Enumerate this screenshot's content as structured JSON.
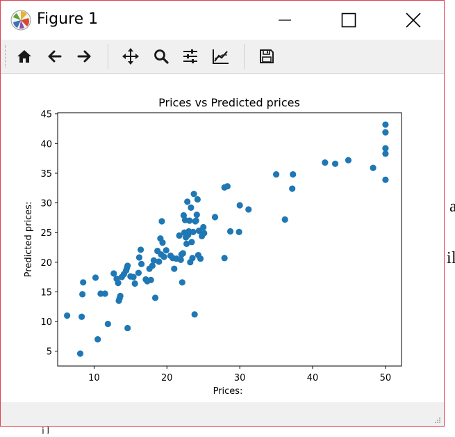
{
  "window": {
    "title": "Figure 1"
  },
  "background_fragments": [
    "a",
    "i",
    "l",
    "i l",
    "·"
  ],
  "toolbar": {
    "buttons": [
      {
        "name": "home-button",
        "icon": "home-icon"
      },
      {
        "name": "back-button",
        "icon": "arrow-left-icon"
      },
      {
        "name": "forward-button",
        "icon": "arrow-right-icon"
      },
      {
        "name": "pan-button",
        "icon": "move-icon"
      },
      {
        "name": "zoom-button",
        "icon": "magnifier-icon"
      },
      {
        "name": "configure-subplots-button",
        "icon": "sliders-icon"
      },
      {
        "name": "edit-axis-button",
        "icon": "line-chart-icon"
      },
      {
        "name": "save-button",
        "icon": "floppy-disk-icon"
      }
    ]
  },
  "colors": {
    "marker": "#1f77b4",
    "window_border": "#e04050",
    "toolbar_bg": "#f0f0f0"
  },
  "chart_data": {
    "type": "scatter",
    "title": "Prices vs Predicted prices",
    "xlabel": "Prices:",
    "ylabel": "Predicted prices:",
    "xlim": [
      5,
      52.2
    ],
    "ylim": [
      2.5,
      45.2
    ],
    "xticks": [
      10,
      20,
      30,
      40,
      50
    ],
    "yticks": [
      5,
      10,
      15,
      20,
      25,
      30,
      35,
      40,
      45
    ],
    "grid": false,
    "points": [
      [
        6.3,
        11.0
      ],
      [
        8.1,
        4.6
      ],
      [
        8.3,
        10.8
      ],
      [
        8.4,
        14.6
      ],
      [
        8.5,
        16.6
      ],
      [
        10.2,
        17.4
      ],
      [
        10.5,
        7.0
      ],
      [
        10.9,
        14.7
      ],
      [
        11.5,
        14.7
      ],
      [
        11.9,
        9.6
      ],
      [
        12.7,
        18.1
      ],
      [
        13.1,
        17.2
      ],
      [
        13.3,
        16.5
      ],
      [
        13.4,
        13.5
      ],
      [
        13.5,
        13.9
      ],
      [
        13.6,
        14.3
      ],
      [
        13.8,
        17.5
      ],
      [
        14.1,
        18.0
      ],
      [
        14.4,
        18.6
      ],
      [
        14.5,
        19.0
      ],
      [
        14.6,
        19.4
      ],
      [
        14.6,
        8.9
      ],
      [
        15.0,
        17.6
      ],
      [
        15.4,
        17.5
      ],
      [
        15.6,
        16.4
      ],
      [
        16.1,
        18.2
      ],
      [
        16.2,
        20.8
      ],
      [
        16.4,
        22.1
      ],
      [
        16.5,
        19.7
      ],
      [
        17.1,
        17.1
      ],
      [
        17.3,
        16.8
      ],
      [
        17.6,
        18.9
      ],
      [
        17.8,
        17.0
      ],
      [
        18.0,
        19.4
      ],
      [
        18.2,
        20.3
      ],
      [
        18.4,
        14.0
      ],
      [
        18.7,
        21.9
      ],
      [
        18.9,
        20.1
      ],
      [
        19.1,
        24.0
      ],
      [
        19.2,
        21.3
      ],
      [
        19.3,
        26.9
      ],
      [
        19.4,
        23.3
      ],
      [
        19.6,
        20.9
      ],
      [
        19.9,
        22.0
      ],
      [
        20.5,
        21.1
      ],
      [
        20.8,
        20.7
      ],
      [
        21.0,
        18.9
      ],
      [
        21.3,
        20.6
      ],
      [
        21.7,
        24.5
      ],
      [
        21.9,
        20.4
      ],
      [
        22.0,
        21.3
      ],
      [
        22.1,
        16.6
      ],
      [
        22.2,
        21.5
      ],
      [
        22.3,
        27.9
      ],
      [
        22.4,
        25.0
      ],
      [
        22.5,
        27.1
      ],
      [
        22.6,
        24.2
      ],
      [
        22.7,
        23.1
      ],
      [
        22.8,
        30.2
      ],
      [
        22.9,
        24.6
      ],
      [
        23.0,
        25.2
      ],
      [
        23.1,
        27.0
      ],
      [
        23.2,
        20.0
      ],
      [
        23.3,
        29.2
      ],
      [
        23.4,
        23.4
      ],
      [
        23.5,
        20.7
      ],
      [
        23.6,
        25.1
      ],
      [
        23.7,
        31.5
      ],
      [
        23.8,
        11.2
      ],
      [
        23.9,
        26.9
      ],
      [
        24.0,
        27.0
      ],
      [
        24.1,
        28.0
      ],
      [
        24.2,
        30.6
      ],
      [
        24.3,
        21.2
      ],
      [
        24.4,
        25.3
      ],
      [
        24.6,
        20.6
      ],
      [
        24.8,
        24.4
      ],
      [
        25.0,
        25.9
      ],
      [
        25.1,
        24.9
      ],
      [
        26.6,
        27.6
      ],
      [
        27.9,
        20.7
      ],
      [
        27.9,
        32.6
      ],
      [
        28.3,
        32.8
      ],
      [
        28.7,
        25.2
      ],
      [
        30.0,
        29.6
      ],
      [
        29.9,
        25.1
      ],
      [
        31.2,
        28.9
      ],
      [
        35.0,
        34.8
      ],
      [
        36.2,
        27.2
      ],
      [
        37.2,
        32.4
      ],
      [
        37.3,
        34.8
      ],
      [
        41.7,
        36.8
      ],
      [
        43.1,
        36.6
      ],
      [
        44.9,
        37.2
      ],
      [
        48.3,
        35.9
      ],
      [
        50.0,
        33.9
      ],
      [
        50.0,
        38.3
      ],
      [
        50.0,
        39.2
      ],
      [
        50.0,
        41.9
      ],
      [
        50.0,
        43.2
      ]
    ]
  }
}
